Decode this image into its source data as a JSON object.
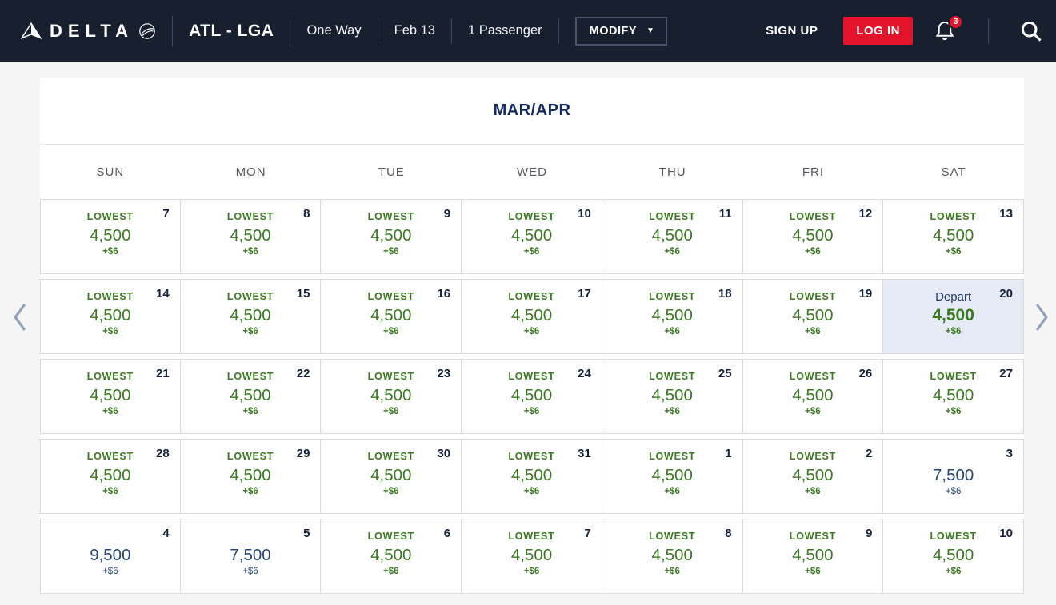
{
  "navbar": {
    "brand": "DELTA",
    "route": "ATL - LGA",
    "trip_type": "One Way",
    "date": "Feb 13",
    "passengers": "1 Passenger",
    "modify_label": "MODIFY",
    "signup_label": "SIGN UP",
    "login_label": "LOG IN",
    "notification_count": "3",
    "icons": {
      "modify_caret": "▼"
    }
  },
  "calendar": {
    "title": "MAR/APR",
    "day_headers": [
      "SUN",
      "MON",
      "TUE",
      "WED",
      "THU",
      "FRI",
      "SAT"
    ],
    "weeks": [
      [
        {
          "date": "7",
          "label": "LOWEST",
          "price": "4,500",
          "fee": "+$6",
          "type": "lowest"
        },
        {
          "date": "8",
          "label": "LOWEST",
          "price": "4,500",
          "fee": "+$6",
          "type": "lowest"
        },
        {
          "date": "9",
          "label": "LOWEST",
          "price": "4,500",
          "fee": "+$6",
          "type": "lowest"
        },
        {
          "date": "10",
          "label": "LOWEST",
          "price": "4,500",
          "fee": "+$6",
          "type": "lowest"
        },
        {
          "date": "11",
          "label": "LOWEST",
          "price": "4,500",
          "fee": "+$6",
          "type": "lowest"
        },
        {
          "date": "12",
          "label": "LOWEST",
          "price": "4,500",
          "fee": "+$6",
          "type": "lowest"
        },
        {
          "date": "13",
          "label": "LOWEST",
          "price": "4,500",
          "fee": "+$6",
          "type": "lowest"
        }
      ],
      [
        {
          "date": "14",
          "label": "LOWEST",
          "price": "4,500",
          "fee": "+$6",
          "type": "lowest"
        },
        {
          "date": "15",
          "label": "LOWEST",
          "price": "4,500",
          "fee": "+$6",
          "type": "lowest"
        },
        {
          "date": "16",
          "label": "LOWEST",
          "price": "4,500",
          "fee": "+$6",
          "type": "lowest"
        },
        {
          "date": "17",
          "label": "LOWEST",
          "price": "4,500",
          "fee": "+$6",
          "type": "lowest"
        },
        {
          "date": "18",
          "label": "LOWEST",
          "price": "4,500",
          "fee": "+$6",
          "type": "lowest"
        },
        {
          "date": "19",
          "label": "LOWEST",
          "price": "4,500",
          "fee": "+$6",
          "type": "lowest"
        },
        {
          "date": "20",
          "label": "Depart",
          "price": "4,500",
          "fee": "+$6",
          "type": "depart"
        }
      ],
      [
        {
          "date": "21",
          "label": "LOWEST",
          "price": "4,500",
          "fee": "+$6",
          "type": "lowest"
        },
        {
          "date": "22",
          "label": "LOWEST",
          "price": "4,500",
          "fee": "+$6",
          "type": "lowest"
        },
        {
          "date": "23",
          "label": "LOWEST",
          "price": "4,500",
          "fee": "+$6",
          "type": "lowest"
        },
        {
          "date": "24",
          "label": "LOWEST",
          "price": "4,500",
          "fee": "+$6",
          "type": "lowest"
        },
        {
          "date": "25",
          "label": "LOWEST",
          "price": "4,500",
          "fee": "+$6",
          "type": "lowest"
        },
        {
          "date": "26",
          "label": "LOWEST",
          "price": "4,500",
          "fee": "+$6",
          "type": "lowest"
        },
        {
          "date": "27",
          "label": "LOWEST",
          "price": "4,500",
          "fee": "+$6",
          "type": "lowest"
        }
      ],
      [
        {
          "date": "28",
          "label": "LOWEST",
          "price": "4,500",
          "fee": "+$6",
          "type": "lowest"
        },
        {
          "date": "29",
          "label": "LOWEST",
          "price": "4,500",
          "fee": "+$6",
          "type": "lowest"
        },
        {
          "date": "30",
          "label": "LOWEST",
          "price": "4,500",
          "fee": "+$6",
          "type": "lowest"
        },
        {
          "date": "31",
          "label": "LOWEST",
          "price": "4,500",
          "fee": "+$6",
          "type": "lowest"
        },
        {
          "date": "1",
          "label": "LOWEST",
          "price": "4,500",
          "fee": "+$6",
          "type": "lowest"
        },
        {
          "date": "2",
          "label": "LOWEST",
          "price": "4,500",
          "fee": "+$6",
          "type": "lowest"
        },
        {
          "date": "3",
          "label": "",
          "price": "7,500",
          "fee": "+$6",
          "type": "regular"
        }
      ],
      [
        {
          "date": "4",
          "label": "",
          "price": "9,500",
          "fee": "+$6",
          "type": "regular"
        },
        {
          "date": "5",
          "label": "",
          "price": "7,500",
          "fee": "+$6",
          "type": "regular"
        },
        {
          "date": "6",
          "label": "LOWEST",
          "price": "4,500",
          "fee": "+$6",
          "type": "lowest"
        },
        {
          "date": "7",
          "label": "LOWEST",
          "price": "4,500",
          "fee": "+$6",
          "type": "lowest"
        },
        {
          "date": "8",
          "label": "LOWEST",
          "price": "4,500",
          "fee": "+$6",
          "type": "lowest"
        },
        {
          "date": "9",
          "label": "LOWEST",
          "price": "4,500",
          "fee": "+$6",
          "type": "lowest"
        },
        {
          "date": "10",
          "label": "LOWEST",
          "price": "4,500",
          "fee": "+$6",
          "type": "lowest"
        }
      ]
    ]
  },
  "colors": {
    "navbar_bg": "#181F2E",
    "accent_red": "#E3132C",
    "lowest_green": "#3A7A21",
    "price_navy": "#264678",
    "title_navy": "#132A63",
    "depart_highlight_bg": "#E5EAF4",
    "page_bg": "#F5F5F5"
  }
}
